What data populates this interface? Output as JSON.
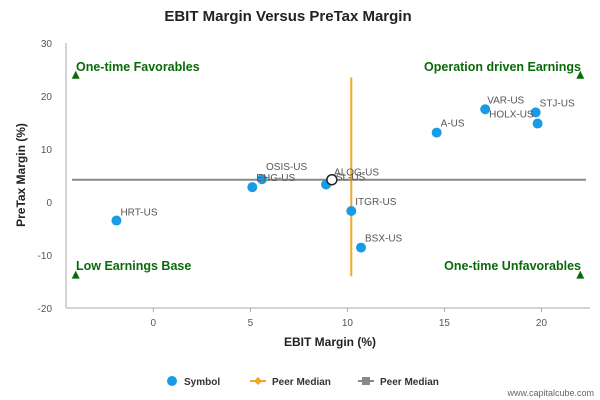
{
  "chart_data": {
    "type": "scatter",
    "title": "EBIT Margin Versus PreTax Margin",
    "xlabel": "EBIT Margin (%)",
    "ylabel": "PreTax Margin (%)",
    "xlim": [
      -4.5,
      22.5
    ],
    "ylim": [
      -20,
      30
    ],
    "xticks": [
      0,
      5,
      10,
      15,
      20
    ],
    "yticks": [
      -20,
      -10,
      0,
      10,
      20,
      30
    ],
    "points": [
      {
        "label": "HRT-US",
        "x": -1.9,
        "y": -3.5
      },
      {
        "label": "OSIS-US",
        "x": 5.6,
        "y": 4.3
      },
      {
        "label": "EHG-US",
        "x": 5.1,
        "y": 2.8
      },
      {
        "label": "ALOG-US",
        "x": 8.9,
        "y": 3.3
      },
      {
        "label": "ITGR-US",
        "x": 10.2,
        "y": -1.7
      },
      {
        "label": "BSX-US",
        "x": 10.7,
        "y": -8.6
      },
      {
        "label": "A-US",
        "x": 14.6,
        "y": 13.1
      },
      {
        "label": "VAR-US",
        "x": 17.1,
        "y": 17.5
      },
      {
        "label": "STJ-US",
        "x": 19.7,
        "y": 16.9
      },
      {
        "label": "HOLX-US",
        "x": 19.8,
        "y": 14.8
      }
    ],
    "highlight": {
      "label": "SL-US",
      "x": 9.2,
      "y": 4.2
    },
    "peer_median_ebit": 10.2,
    "peer_median_pretax": 4.2,
    "quadrants": {
      "top_left": "One-time Favorables",
      "top_right": "Operation driven Earnings",
      "bottom_left": "Low Earnings Base",
      "bottom_right": "One-time Unfavorables"
    },
    "legend": [
      {
        "name": "Symbol",
        "color": "#1a9be6"
      },
      {
        "name": "Peer Median",
        "color": "#f5a623"
      },
      {
        "name": "Peer Median",
        "color": "#888888"
      }
    ],
    "grid": false,
    "legend_position": "bottom"
  },
  "colors": {
    "point": "#1a9be6",
    "vline": "#f5a623",
    "hline": "#888888",
    "quad_arrow": "#0a6a0a"
  },
  "credit": "www.capitalcube.com"
}
